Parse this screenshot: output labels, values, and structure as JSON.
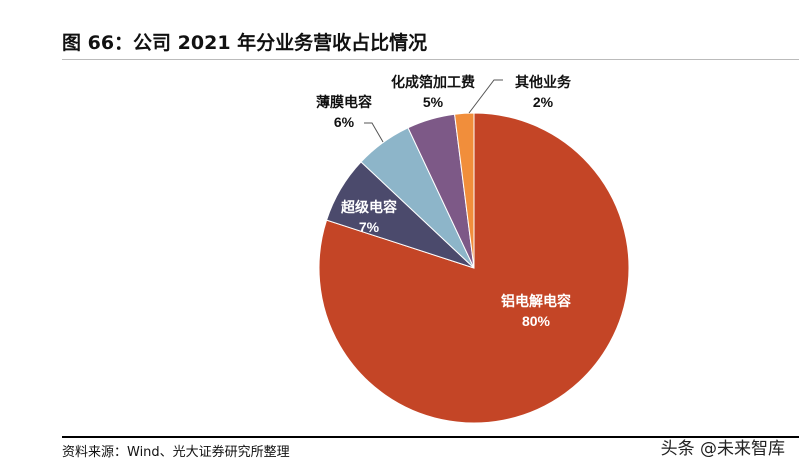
{
  "title": "图 66：公司 2021 年分业务营收占比情况",
  "source": "资料来源：Wind、光大证券研究所整理",
  "watermark": "头条 @未来智库",
  "chart_data": {
    "type": "pie",
    "title": "",
    "start": "top",
    "direction": "clockwise",
    "slices": [
      {
        "label": "铝电解电容",
        "value": 80,
        "pct_label": "80%",
        "color": "#C44526"
      },
      {
        "label": "超级电容",
        "value": 7,
        "pct_label": "7%",
        "color": "#4B4A6C"
      },
      {
        "label": "薄膜电容",
        "value": 6,
        "pct_label": "6%",
        "color": "#8DB5C9"
      },
      {
        "label": "化成箔加工费",
        "value": 5,
        "pct_label": "5%",
        "color": "#7D5987"
      },
      {
        "label": "其他业务",
        "value": 2,
        "pct_label": "2%",
        "color": "#F18E3B"
      }
    ]
  }
}
